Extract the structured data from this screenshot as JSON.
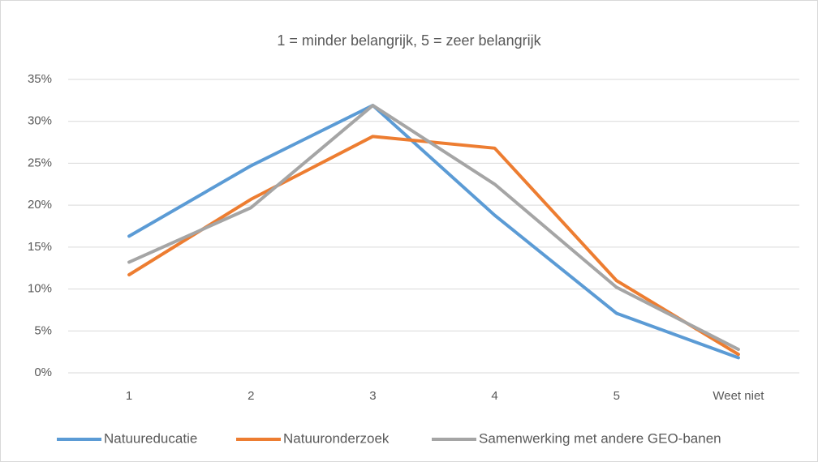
{
  "chart_data": {
    "type": "line",
    "title": "1 = minder belangrijk, 5 = zeer belangrijk",
    "categories": [
      "1",
      "2",
      "3",
      "4",
      "5",
      "Weet niet"
    ],
    "series": [
      {
        "name": "Natuureducatie",
        "color": "#5b9bd5",
        "values": [
          16.3,
          24.7,
          31.9,
          18.8,
          7.1,
          1.8
        ]
      },
      {
        "name": "Natuuronderzoek",
        "color": "#ed7d31",
        "values": [
          11.7,
          20.7,
          28.2,
          26.8,
          11.0,
          2.2
        ]
      },
      {
        "name": "Samenwerking met andere GEO-banen",
        "color": "#a5a5a5",
        "values": [
          13.2,
          19.7,
          31.9,
          22.5,
          10.2,
          2.8
        ]
      }
    ],
    "ylim": [
      0,
      35
    ],
    "yticks": [
      {
        "value": 0,
        "label": "0%"
      },
      {
        "value": 5,
        "label": "5%"
      },
      {
        "value": 10,
        "label": "10%"
      },
      {
        "value": 15,
        "label": "15%"
      },
      {
        "value": 20,
        "label": "20%"
      },
      {
        "value": 25,
        "label": "25%"
      },
      {
        "value": 30,
        "label": "30%"
      },
      {
        "value": 35,
        "label": "35%"
      }
    ],
    "grid": true,
    "legend": "bottom"
  }
}
